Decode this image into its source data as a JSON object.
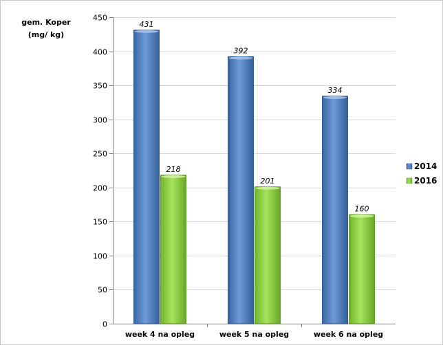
{
  "chart_data": {
    "type": "bar",
    "title": "",
    "ylabel_lines": [
      "gem. Koper",
      "(mg/ kg)"
    ],
    "xlabel": "",
    "categories": [
      "week 4 na opleg",
      "week 5 na opleg",
      "week 6 na opleg"
    ],
    "series": [
      {
        "name": "2014",
        "values": [
          431,
          392,
          334
        ],
        "color": "#4f81bd"
      },
      {
        "name": "2016",
        "values": [
          218,
          201,
          160
        ],
        "color": "#8fd13f"
      }
    ],
    "ylim": [
      0,
      450
    ],
    "yticks": [
      0,
      50,
      100,
      150,
      200,
      250,
      300,
      350,
      400,
      450
    ],
    "grid": true,
    "legend": "right"
  }
}
